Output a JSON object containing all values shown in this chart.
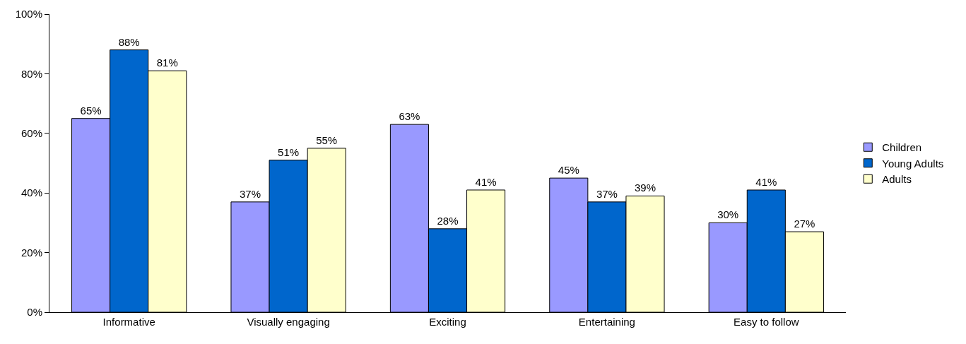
{
  "chart_data": {
    "type": "bar",
    "categories": [
      "Informative",
      "Visually engaging",
      "Exciting",
      "Entertaining",
      "Easy to follow"
    ],
    "series": [
      {
        "name": "Children",
        "color": "#9999ff",
        "values": [
          65,
          37,
          63,
          45,
          30
        ],
        "value_labels": [
          "65%",
          "37%",
          "63%",
          "45%",
          "30%"
        ]
      },
      {
        "name": "Young Adults",
        "color": "#0066cc",
        "values": [
          88,
          51,
          28,
          37,
          41
        ],
        "value_labels": [
          "88%",
          "51%",
          "28%",
          "37%",
          "41%"
        ]
      },
      {
        "name": "Adults",
        "color": "#ffffcc",
        "values": [
          81,
          55,
          41,
          39,
          27
        ],
        "value_labels": [
          "81%",
          "55%",
          "41%",
          "39%",
          "27%"
        ]
      }
    ],
    "ylim": [
      0,
      100
    ],
    "yticks": [
      {
        "value": 0,
        "label": "0%"
      },
      {
        "value": 20,
        "label": "20%"
      },
      {
        "value": 40,
        "label": "40%"
      },
      {
        "value": 60,
        "label": "60%"
      },
      {
        "value": 80,
        "label": "80%"
      },
      {
        "value": 100,
        "label": "100%"
      }
    ],
    "legend": "right"
  }
}
